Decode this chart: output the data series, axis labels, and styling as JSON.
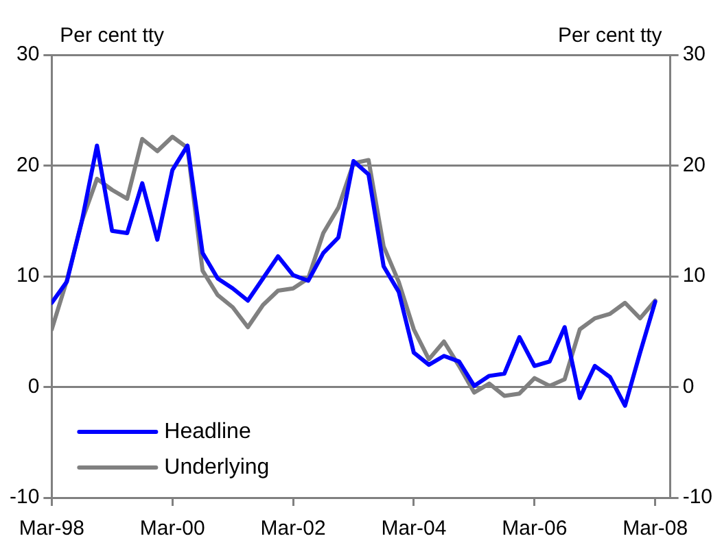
{
  "chart_data": {
    "type": "line",
    "ylabel": "Per cent tty",
    "y2label": "Per cent tty",
    "x": [
      "1998-03",
      "1998-06",
      "1998-09",
      "1998-12",
      "1999-03",
      "1999-06",
      "1999-09",
      "1999-12",
      "2000-03",
      "2000-06",
      "2000-09",
      "2000-12",
      "2001-03",
      "2001-06",
      "2001-09",
      "2001-12",
      "2002-03",
      "2002-06",
      "2002-09",
      "2002-12",
      "2003-03",
      "2003-06",
      "2003-09",
      "2003-12",
      "2004-03",
      "2004-06",
      "2004-09",
      "2004-12",
      "2005-03",
      "2005-06",
      "2005-09",
      "2005-12",
      "2006-03",
      "2006-06",
      "2006-09",
      "2006-12",
      "2007-03",
      "2007-06",
      "2007-09",
      "2007-12",
      "2008-03"
    ],
    "series": [
      {
        "name": "Headline",
        "color": "#0000ff",
        "values": [
          7.6,
          9.5,
          15,
          21.8,
          14.1,
          13.9,
          18.4,
          13.3,
          19.6,
          21.8,
          12.1,
          9.8,
          8.9,
          7.8,
          9.8,
          11.8,
          10.1,
          9.6,
          12.1,
          13.5,
          20.4,
          19.2,
          10.9,
          8.6,
          3.1,
          2.0,
          2.8,
          2.3,
          0.1,
          1.0,
          1.2,
          4.5,
          1.9,
          2.3,
          5.4,
          -1.0,
          1.9,
          0.9,
          -1.7,
          3.1,
          7.7
        ]
      },
      {
        "name": "Underlying",
        "color": "#808080",
        "values": [
          5.2,
          9.6,
          15,
          18.8,
          17.8,
          17.0,
          22.4,
          21.3,
          22.6,
          21.6,
          10.5,
          8.3,
          7.2,
          5.4,
          7.4,
          8.7,
          8.9,
          9.8,
          13.9,
          16.2,
          20.2,
          20.5,
          12.7,
          9.5,
          5.2,
          2.5,
          4.1,
          1.9,
          -0.5,
          0.3,
          -0.8,
          -0.6,
          0.8,
          0.1,
          0.7,
          5.2,
          6.2,
          6.6,
          7.6,
          6.2,
          7.8
        ]
      }
    ],
    "xlim": [
      "1998-03",
      "2008-06"
    ],
    "xticks": [
      {
        "value": "1998-03",
        "label": "Mar-98"
      },
      {
        "value": "2000-03",
        "label": "Mar-00"
      },
      {
        "value": "2002-03",
        "label": "Mar-02"
      },
      {
        "value": "2004-03",
        "label": "Mar-04"
      },
      {
        "value": "2006-03",
        "label": "Mar-06"
      },
      {
        "value": "2008-03",
        "label": "Mar-08"
      }
    ],
    "ylim": [
      -10,
      30
    ],
    "yticks": [
      -10,
      0,
      10,
      20,
      30
    ],
    "y2lim": [
      -10,
      30
    ],
    "y2ticks": [
      -10,
      0,
      10,
      20,
      30
    ],
    "grid": "y",
    "legend": "bottom left",
    "marker": "none",
    "line_style": "solid"
  }
}
